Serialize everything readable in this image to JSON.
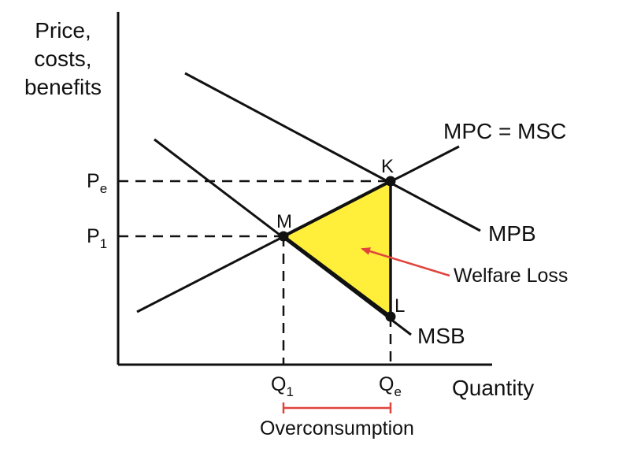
{
  "y_axis_label": [
    "Price,",
    "costs,",
    "benefits"
  ],
  "x_axis_label": "Quantity",
  "curves": {
    "mpc_msc": "MPC = MSC",
    "mpb": "MPB",
    "msb": "MSB"
  },
  "points": {
    "k": "K",
    "m": "M",
    "l": "L"
  },
  "y_ticks": [
    {
      "base": "P",
      "sub": "e"
    },
    {
      "base": "P",
      "sub": "1"
    }
  ],
  "x_ticks": [
    {
      "base": "Q",
      "sub": "1"
    },
    {
      "base": "Q",
      "sub": "e"
    }
  ],
  "annotations": {
    "welfare_loss": "Welfare Loss",
    "overconsumption": "Overconsumption"
  },
  "colors": {
    "line": "#111111",
    "welfare_fill": "#ffef3a",
    "arrow": "#e0443c",
    "bracket": "#e0443c"
  }
}
